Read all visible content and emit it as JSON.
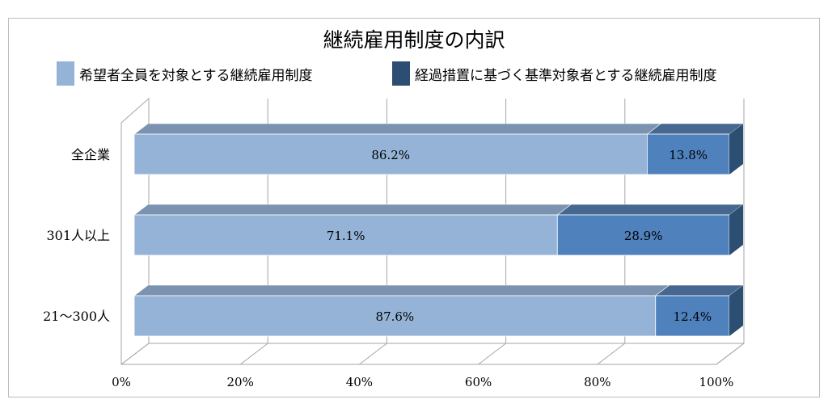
{
  "chart_data": {
    "type": "bar",
    "orientation": "horizontal",
    "stacked": true,
    "percent_stacked": true,
    "style_3d": true,
    "title": "継続雇用制度の内訳",
    "categories": [
      "全企業",
      "301人以上",
      "21～300人"
    ],
    "series": [
      {
        "name": "希望者全員を対象とする継続雇用制度",
        "values": [
          86.2,
          71.1,
          87.6
        ],
        "labels": [
          "86.2%",
          "71.1%",
          "87.6%"
        ],
        "color": "#95b3d7"
      },
      {
        "name": "経過措置に基づく基準対象者とする継続雇用制度",
        "values": [
          13.8,
          28.9,
          12.4
        ],
        "labels": [
          "13.8%",
          "28.9%",
          "12.4%"
        ],
        "color": "#4f81bd",
        "side_color": "#2c4e72"
      }
    ],
    "x_ticks": [
      "0%",
      "20%",
      "40%",
      "60%",
      "80%",
      "100%"
    ],
    "xlim": [
      0,
      100
    ],
    "grid": true,
    "legend_position": "top"
  }
}
